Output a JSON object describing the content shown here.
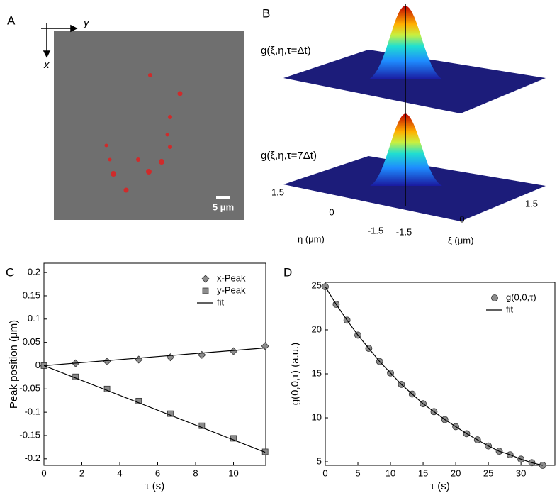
{
  "panel_a": {
    "label": "A",
    "axis_x": "x",
    "axis_y": "y",
    "scale_bar": "5 μm"
  },
  "panel_b": {
    "label": "B",
    "surface_top": "g(ξ,η,τ=Δt)",
    "surface_bottom": "g(ξ,η,τ=7Δt)",
    "eta_ticks": [
      1.5,
      0,
      -1.5
    ],
    "xi_ticks": [
      -1.5,
      0,
      1.5
    ],
    "eta_label": "η (μm)",
    "xi_label": "ξ (μm)"
  },
  "chart_data": [
    {
      "type": "scatter",
      "panel_label": "C",
      "x_label": "τ (s)",
      "y_label": "Peak position (μm)",
      "xlim": [
        0,
        11.7
      ],
      "ylim": [
        -0.214,
        0.22
      ],
      "xticks": [
        0,
        2,
        4,
        6,
        8,
        10
      ],
      "yticks": [
        -0.2,
        -0.15,
        -0.1,
        -0.05,
        0,
        0.05,
        0.1,
        0.15,
        0.2
      ],
      "legend": "top-right",
      "series": [
        {
          "name": "x-Peak",
          "marker": "diamond",
          "color": "#8c8c8c",
          "x": [
            0,
            1.67,
            3.33,
            5,
            6.67,
            8.33,
            10,
            11.67
          ],
          "values": [
            0,
            0.005,
            0.009,
            0.013,
            0.018,
            0.023,
            0.031,
            0.042
          ]
        },
        {
          "name": "y-Peak",
          "marker": "square",
          "color": "#8c8c8c",
          "x": [
            0,
            1.67,
            3.33,
            5,
            6.67,
            8.33,
            10,
            11.67
          ],
          "values": [
            0,
            -0.024,
            -0.05,
            -0.076,
            -0.103,
            -0.129,
            -0.156,
            -0.185
          ]
        },
        {
          "name": "fit",
          "marker": "line",
          "color": "#000000",
          "x": [
            0,
            11.67
          ],
          "values": [
            0,
            0.038
          ]
        },
        {
          "marker": "line",
          "color": "#000000",
          "x": [
            0,
            11.67
          ],
          "values": [
            0,
            -0.186
          ]
        }
      ]
    },
    {
      "type": "scatter",
      "panel_label": "D",
      "x_label": "τ (s)",
      "y_label": "g(0,0,τ) (a.u.)",
      "xlim": [
        0,
        35.2
      ],
      "ylim": [
        4.6,
        25.4
      ],
      "xticks": [
        0,
        5,
        10,
        15,
        20,
        25,
        30
      ],
      "yticks": [
        5,
        10,
        15,
        20,
        25
      ],
      "legend": "top-right",
      "series": [
        {
          "name": "g(0,0,τ)",
          "marker": "circle",
          "color": "#8c8c8c",
          "x": [
            0,
            1.67,
            3.33,
            5,
            6.67,
            8.33,
            10,
            11.67,
            13.33,
            15,
            16.67,
            18.33,
            20,
            21.67,
            23.33,
            25,
            26.67,
            28.33,
            30,
            31.67,
            33.33
          ],
          "values": [
            24.9,
            22.9,
            21.1,
            19.4,
            17.9,
            16.4,
            15.1,
            13.8,
            12.7,
            11.6,
            10.7,
            9.8,
            9.0,
            8.2,
            7.5,
            6.8,
            6.2,
            5.8,
            5.3,
            4.9,
            4.6
          ]
        },
        {
          "name": "fit",
          "marker": "line",
          "color": "#000000",
          "x": [
            0,
            1.67,
            3.33,
            5,
            6.67,
            8.33,
            10,
            11.67,
            13.33,
            15,
            16.67,
            18.33,
            20,
            21.67,
            23.33,
            25,
            26.67,
            28.33,
            30,
            31.67,
            33.33
          ],
          "values": [
            24.9,
            22.9,
            21.1,
            19.4,
            17.9,
            16.4,
            15.1,
            13.8,
            12.7,
            11.6,
            10.7,
            9.8,
            9.0,
            8.2,
            7.5,
            6.8,
            6.2,
            5.8,
            5.3,
            4.9,
            4.6
          ]
        }
      ]
    }
  ]
}
